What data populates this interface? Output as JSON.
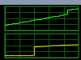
{
  "chart_data": [
    {
      "type": "line",
      "line_style": "step",
      "grid": true,
      "tick_labels": false,
      "x": [
        0,
        5,
        10,
        15,
        20,
        25,
        30,
        35,
        40,
        45,
        50,
        55,
        60,
        65,
        70,
        75,
        80,
        85,
        90,
        95,
        100
      ],
      "xlim": [
        0,
        100
      ],
      "xticks": [
        0,
        20,
        40,
        60,
        80,
        100
      ],
      "ylim": [
        0,
        100
      ],
      "yticks": [
        0,
        25,
        50,
        75,
        100
      ],
      "series": [
        {
          "color": "#33ff33",
          "values": [
            22,
            25,
            28,
            30,
            33,
            36,
            38,
            41,
            44,
            46,
            49,
            52,
            55,
            58,
            60,
            63,
            66,
            85,
            88,
            90,
            92
          ]
        }
      ]
    },
    {
      "type": "line",
      "line_style": "step",
      "grid": true,
      "tick_labels": false,
      "x": [
        0,
        5,
        10,
        15,
        20,
        25,
        30,
        35,
        40,
        45,
        50,
        55,
        60,
        65,
        70,
        75,
        80,
        85,
        90,
        95,
        100
      ],
      "xlim": [
        0,
        100
      ],
      "xticks": [
        0,
        20,
        40,
        60,
        80,
        100
      ],
      "ylim": [
        0,
        100
      ],
      "yticks": [
        0,
        25,
        50,
        75,
        100
      ],
      "series": [
        {
          "color": "#ffdd00",
          "values": [
            8,
            8,
            8,
            8,
            8,
            8,
            8,
            10,
            45,
            46,
            47,
            48,
            50,
            50,
            51,
            52,
            52,
            53,
            53,
            54,
            54
          ]
        }
      ]
    }
  ]
}
